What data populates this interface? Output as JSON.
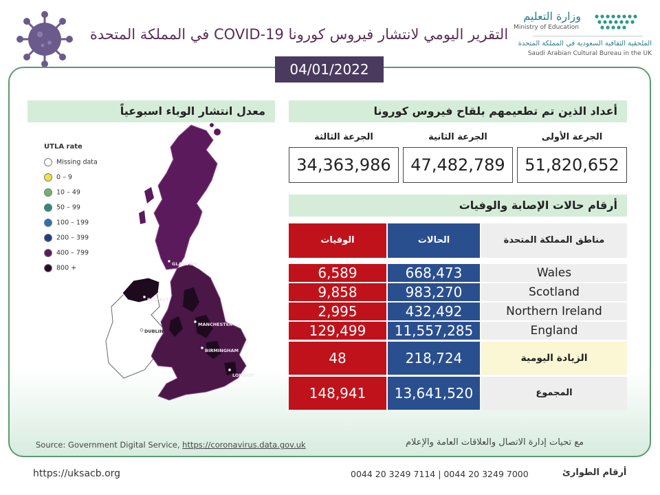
{
  "header": {
    "title": "التقرير اليومي لانتشار فيروس كورونا COVID-19 في المملكة المتحدة",
    "virus_icon": "virus-icon",
    "logo": {
      "ministry_ar": "وزارة التعليم",
      "ministry_en": "Ministry of Education",
      "bureau_ar": "الملحقية الثقافية السعودية في المملكة المتحدة",
      "bureau_en": "Saudi Arabian Cultural Bureau in the UK"
    }
  },
  "date": "04/01/2022",
  "map": {
    "heading": "معدل انتشار الوباء اسبوعياً",
    "legend_title": "UTLA rate",
    "legend": [
      {
        "label": "Missing data",
        "color": "#ffffff"
      },
      {
        "label": "0 – 9",
        "color": "#f0e442"
      },
      {
        "label": "10 – 49",
        "color": "#6db56d"
      },
      {
        "label": "50 – 99",
        "color": "#2b8c7e"
      },
      {
        "label": "100 – 199",
        "color": "#2f6fb5"
      },
      {
        "label": "200 – 399",
        "color": "#243c8a"
      },
      {
        "label": "400 – 799",
        "color": "#5b1a5c"
      },
      {
        "label": "800 +",
        "color": "#2a0a26"
      }
    ],
    "cities": [
      "GLASGOW",
      "BELFAST",
      "DUBLIN",
      "MANCHESTER",
      "BIRMINGHAM",
      "LONDON"
    ]
  },
  "vaccination": {
    "heading": "أعداد الذين تم تطعيمهم بلقاح فيروس كورونا",
    "doses": [
      {
        "label": "الجرعة الأولى",
        "value": "51,820,652"
      },
      {
        "label": "الجرعة الثانية",
        "value": "47,482,789"
      },
      {
        "label": "الجرعة الثالثة",
        "value": "34,363,986"
      }
    ]
  },
  "cases": {
    "heading": "أرقام حالات الإصابة والوفيات",
    "columns": {
      "region": "مناطق المملكة المتحدة",
      "cases": "الحالات",
      "deaths": "الوفيات"
    },
    "rows": [
      {
        "region": "Wales",
        "cases": "668,473",
        "deaths": "6,589"
      },
      {
        "region": "Scotland",
        "cases": "983,270",
        "deaths": "9,858"
      },
      {
        "region": "Northern Ireland",
        "cases": "432,492",
        "deaths": "2,995"
      },
      {
        "region": "England",
        "cases": "11,557,285",
        "deaths": "129,499"
      }
    ],
    "daily": {
      "label": "الزيادة اليومية",
      "cases": "218,724",
      "deaths": "48"
    },
    "total": {
      "label": "المجموع",
      "cases": "13,641,520",
      "deaths": "148,941"
    }
  },
  "source": {
    "prefix": "Source: Government  Digital Service,",
    "link": "https://coronavirus.data.gov.uk"
  },
  "credit": "مع تحيات إدارة الاتصال والعلاقات العامة والإعلام",
  "footer": {
    "url": "https://uksacb.org",
    "phones": "0044 20 3249 7114   |   0044 20 3249 7000",
    "phones_label": "أرقام الطوارئ"
  },
  "colors": {
    "accent": "#5a9a6e",
    "header_purple": "#4a3a5e",
    "deaths_red": "#c0121b",
    "cases_blue": "#2a4f8f"
  }
}
